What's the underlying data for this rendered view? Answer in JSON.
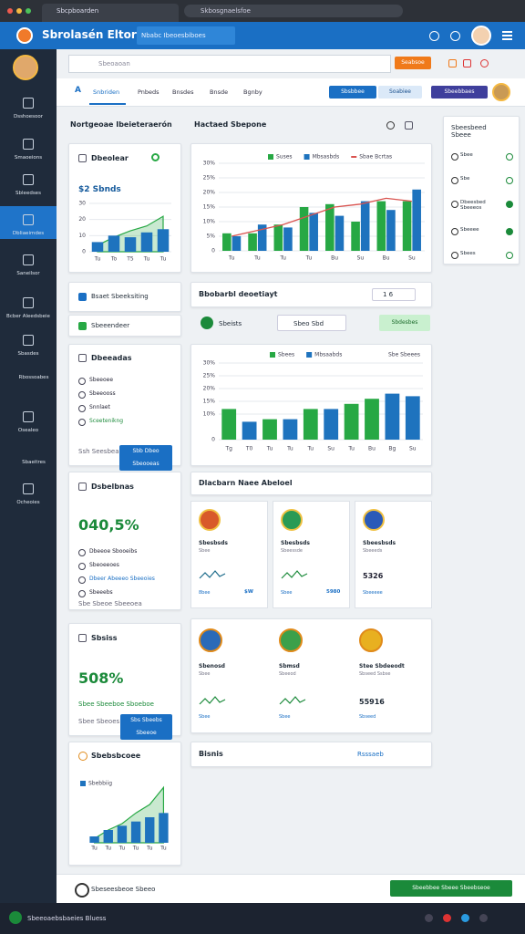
{
  "browser": {
    "tab": "Sbcpboarden",
    "url": "Skbosgnaelsfoe"
  },
  "header": {
    "title": "Sbrolasén Eltorisl",
    "search": "Nbabc Ibeoesbiboes"
  },
  "sidebar": [
    "Dsshoesoor",
    "Smaoeions",
    "Sbleedses",
    "Dbliaeimdes",
    "Saneilsor",
    "Bcber Aleedsbeie",
    "Sbasdes",
    "Rbossoabes",
    "Osealeo",
    "Sbaeitres",
    "Ocheoies"
  ],
  "toolbar": {
    "search_placeholder": "Sbeoaoan",
    "search_button": "Seabsoe"
  },
  "tabs": [
    "A",
    "Snbriden",
    "Pnbeds",
    "Bnsdes",
    "Bnsde",
    "Bgnby"
  ],
  "actions": [
    "Sbsbbee",
    "Soabiee",
    "Sbeebbaes"
  ],
  "sections": {
    "left": "Nortgeoae Ibeieteraerón",
    "middle": "Hactaed Sbepone"
  },
  "cards": {
    "overview": {
      "title": "Dbeolear",
      "value": "$2 Sbnds"
    },
    "dropdown": "Bsaet Sbeeksiting",
    "selector": "Sbeeendeer",
    "tasks": {
      "title": "Dbeeadas",
      "items": [
        "Sbeeoee",
        "Sbeeooss",
        "Snnlaet",
        "Sceetenikng"
      ],
      "note": "Ssh Seesbea",
      "button": "Sbb Dbeo Sbeooeas"
    },
    "rate": {
      "title": "Dsbelbnas",
      "value": "040,5%",
      "items": [
        "Dbeeoe Sbooeibs",
        "Sbeoeeoes",
        "Dbeer Abeeeo Sbeeoies",
        "Sbeeebs"
      ],
      "note": "Sbe Sbeoe Sbeeoea"
    },
    "status": {
      "title": "Sbsiss",
      "value": "508%",
      "note": "Sbee Sbeeboe Sboeboe",
      "footer": "Sbee Sbeoes",
      "button": "Sbs Sbeebs Sbeeoe"
    },
    "trend": {
      "title": "Sbebsbcoee",
      "legend": "Sbebbiig"
    }
  },
  "middle": {
    "filter": {
      "title": "Bbobarbl deoetiayt",
      "select": "1 6"
    },
    "search_row": {
      "label": "Sbeists",
      "input": "Sbeo Sbd",
      "button": "Sbdesbes"
    },
    "people_header": "Dlacbarn Naee Abeloel",
    "people": [
      {
        "name": "Sbesbsds",
        "sub": "Sbee",
        "value": "$W",
        "note": "8bee"
      },
      {
        "name": "Sbesbsds",
        "sub": "Sbeessde",
        "value": "5980",
        "note": "Sbee"
      },
      {
        "name": "Sbeesbsds",
        "sub": "Sbeeeds",
        "value": "5326",
        "note": "Sbeeeee"
      }
    ],
    "people2": [
      {
        "name": "Sbenosd",
        "sub": "Sbee",
        "note": "Sbee"
      },
      {
        "name": "Sbmsd",
        "sub": "Sbeeod",
        "note": "Sbee"
      },
      {
        "name": "Stee Sbdeeodt",
        "sub": "Sbseed Ssbse",
        "value": "55916",
        "note": "Sbseed"
      }
    ],
    "bottom": {
      "title": "Bisnis",
      "link": "Rsssaeb"
    }
  },
  "right_panel": {
    "title": "Sbeesbeed Sbeee",
    "items": [
      "Sbee",
      "Sbe",
      "Dbeesbed Sbeeeos",
      "Sbeeee",
      "Sbees"
    ]
  },
  "footer": {
    "text": "Sbeseesbeoe Sbeeo",
    "button": "Sbeebbee Sbeee Sbeebseoe"
  },
  "status_bar": "Sbeeoaebsbaeies Bluess",
  "chart_data": [
    {
      "type": "bar",
      "categories": [
        "Tu",
        "To",
        "T5",
        "Tu",
        "Tu"
      ],
      "ylim": [
        0,
        30
      ],
      "yticks": [
        0,
        10,
        20,
        30
      ],
      "series": [
        {
          "name": "Sbnds",
          "color": "#1e73be",
          "values": [
            6,
            10,
            9,
            12,
            14
          ]
        }
      ],
      "area": {
        "color": "#27a844",
        "values": [
          4,
          9,
          13,
          16,
          22
        ]
      }
    },
    {
      "type": "bar",
      "categories": [
        "Tu",
        "Tu",
        "Tu",
        "Tu",
        "Bu",
        "Su",
        "Bu",
        "Su"
      ],
      "ylim": [
        0,
        30
      ],
      "yticks": [
        {
          "value": 0,
          "label": "0"
        },
        {
          "value": 5,
          "label": "5%"
        },
        {
          "value": 10,
          "label": "10%"
        },
        {
          "value": 15,
          "label": "15%"
        },
        {
          "value": 20,
          "label": "20%"
        },
        {
          "value": 25,
          "label": "25%"
        },
        {
          "value": 30,
          "label": "30%"
        }
      ],
      "series": [
        {
          "name": "Suses",
          "color": "#27a844",
          "values": [
            6,
            6,
            9,
            15,
            16,
            10,
            17,
            17
          ]
        },
        {
          "name": "Mbsasbds",
          "color": "#1e73be",
          "values": [
            5,
            9,
            8,
            13,
            12,
            17,
            14,
            21
          ]
        }
      ],
      "line": {
        "name": "Sbae Bcrtas",
        "color": "#d9534f",
        "values": [
          5,
          7,
          9,
          12,
          15,
          16,
          18,
          17
        ]
      }
    },
    {
      "type": "bar",
      "categories": [
        "Tg",
        "T0",
        "Tu",
        "Tu",
        "Tu",
        "Su",
        "Tu",
        "Bu",
        "Bg",
        "Su"
      ],
      "ylim": [
        0,
        30
      ],
      "yticks": [
        {
          "value": 0,
          "label": "0"
        },
        {
          "value": 10,
          "label": "10%"
        },
        {
          "value": 15,
          "label": "15%"
        },
        {
          "value": 20,
          "label": "20%"
        },
        {
          "value": 25,
          "label": "25%"
        },
        {
          "value": 30,
          "label": "30%"
        }
      ],
      "series": [
        {
          "name": "Sbees",
          "color": "#27a844",
          "values": [
            12,
            null,
            8,
            null,
            12,
            null,
            14,
            16,
            null,
            null
          ]
        },
        {
          "name": "Mbsaabds",
          "color": "#1e73be",
          "values": [
            null,
            7,
            null,
            8,
            null,
            12,
            null,
            null,
            18,
            17
          ]
        }
      ],
      "note": "Sbe Sbeees"
    },
    {
      "type": "bar",
      "categories": [
        "Tu",
        "Tu",
        "Tu",
        "Tu",
        "Tu",
        "Tu"
      ],
      "ylim": [
        0,
        30
      ],
      "series": [
        {
          "name": "Sbebbiig",
          "color": "#1e73be",
          "values": [
            3,
            6,
            8,
            10,
            12,
            14
          ]
        }
      ],
      "area": {
        "color": "#27a844",
        "values": [
          2,
          6,
          9,
          14,
          18,
          26
        ]
      }
    }
  ]
}
